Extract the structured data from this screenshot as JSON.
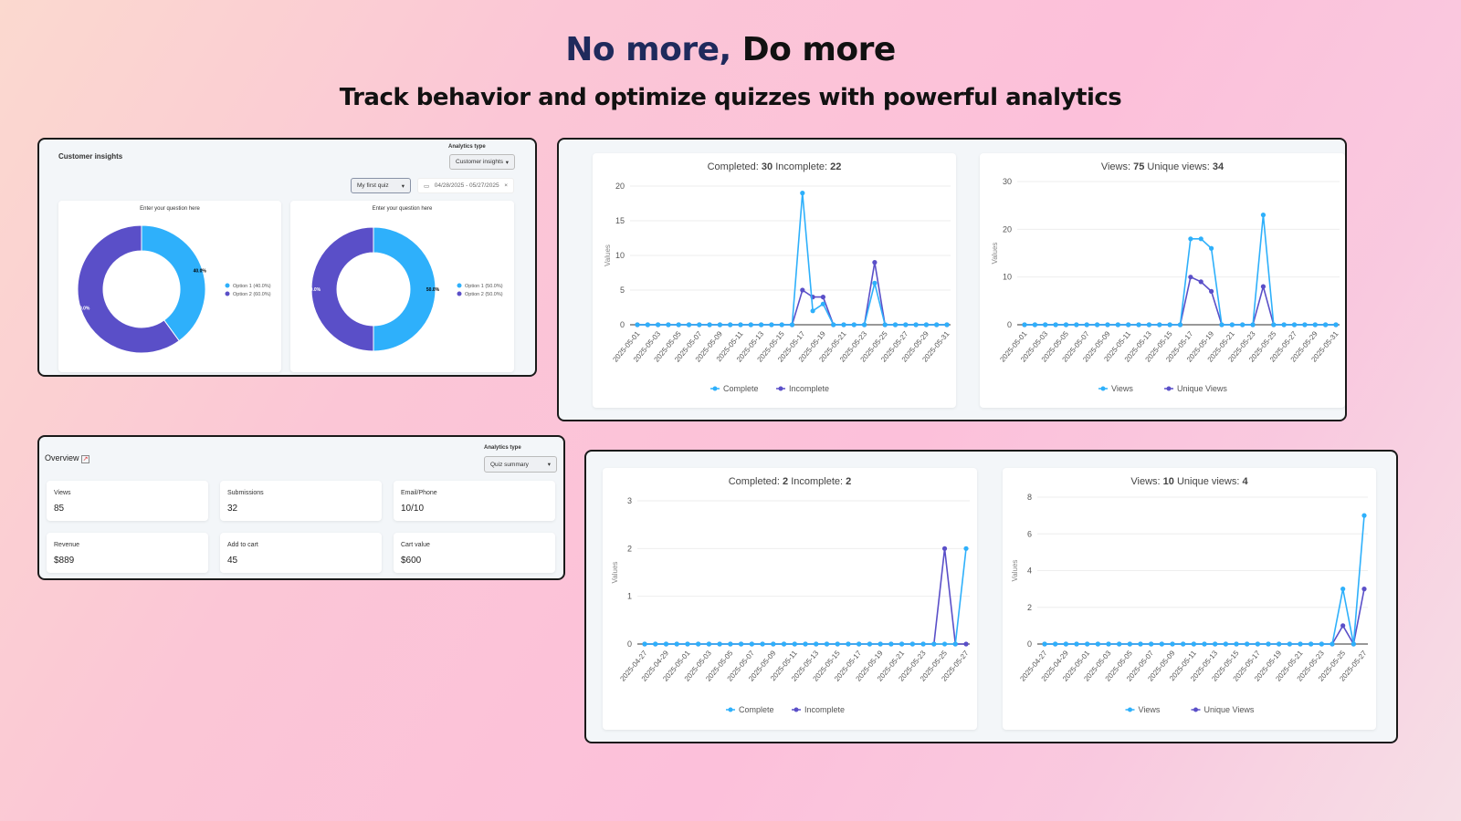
{
  "headline": {
    "part1": "No more,",
    "part2": "Do more"
  },
  "subheadline": "Track behavior and optimize quizzes with powerful analytics",
  "colors": {
    "primary_series": "#2eb0fb",
    "secondary_series": "#5a4fc8",
    "heading_navy": "#1f2a5c"
  },
  "customer_insights": {
    "title": "Customer insights",
    "analytics_type_label": "Analytics type",
    "analytics_type_value": "Customer insights",
    "quiz_select_value": "My first quiz",
    "date_range": "04/28/2025 - 05/27/2025",
    "calendar_icon": "calendar-icon",
    "clear_icon": "close-icon"
  },
  "overview": {
    "title": "Overview",
    "icon": "chart-icon",
    "analytics_type_label": "Analytics type",
    "analytics_type_value": "Quiz summary",
    "stats": [
      {
        "label": "Views",
        "value": "85"
      },
      {
        "label": "Submissions",
        "value": "32"
      },
      {
        "label": "Email/Phone",
        "value": "10/10"
      },
      {
        "label": "Revenue",
        "value": "$889"
      },
      {
        "label": "Add to cart",
        "value": "45"
      },
      {
        "label": "Cart value",
        "value": "$600"
      }
    ]
  },
  "chart_data": [
    {
      "type": "pie",
      "donut": true,
      "title": "Enter your question here",
      "slices": [
        {
          "name": "Option 1 (40.0%)",
          "value": 40.0,
          "label": "40.0%"
        },
        {
          "name": "Option 2 (60.0%)",
          "value": 60.0,
          "label": "60.0%"
        }
      ],
      "legend": "right"
    },
    {
      "type": "pie",
      "donut": true,
      "title": "Enter your question here",
      "slices": [
        {
          "name": "Option 1 (50.0%)",
          "value": 50.0,
          "label": "50.0%"
        },
        {
          "name": "Option 2 (50.0%)",
          "value": 50.0,
          "label": "50.0%"
        }
      ],
      "legend": "right"
    },
    {
      "type": "line",
      "title": [
        [
          "Completed:",
          "30"
        ],
        [
          "Incomplete:",
          "22"
        ]
      ],
      "ylabel": "Values",
      "ylim": [
        0,
        20
      ],
      "yticks": [
        0,
        5,
        10,
        15,
        20
      ],
      "grid": true,
      "legend": "bottom",
      "x": [
        "2025-05-01",
        "2025-05-02",
        "2025-05-03",
        "2025-05-04",
        "2025-05-05",
        "2025-05-06",
        "2025-05-07",
        "2025-05-08",
        "2025-05-09",
        "2025-05-10",
        "2025-05-11",
        "2025-05-12",
        "2025-05-13",
        "2025-05-14",
        "2025-05-15",
        "2025-05-16",
        "2025-05-17",
        "2025-05-18",
        "2025-05-19",
        "2025-05-20",
        "2025-05-21",
        "2025-05-22",
        "2025-05-23",
        "2025-05-24",
        "2025-05-25",
        "2025-05-26",
        "2025-05-27",
        "2025-05-28",
        "2025-05-29",
        "2025-05-30",
        "2025-05-31"
      ],
      "series": [
        {
          "name": "Complete",
          "values": [
            0,
            0,
            0,
            0,
            0,
            0,
            0,
            0,
            0,
            0,
            0,
            0,
            0,
            0,
            0,
            0,
            19,
            2,
            3,
            0,
            0,
            0,
            0,
            6,
            0,
            0,
            0,
            0,
            0,
            0,
            0
          ]
        },
        {
          "name": "Incomplete",
          "values": [
            0,
            0,
            0,
            0,
            0,
            0,
            0,
            0,
            0,
            0,
            0,
            0,
            0,
            0,
            0,
            0,
            5,
            4,
            4,
            0,
            0,
            0,
            0,
            9,
            0,
            0,
            0,
            0,
            0,
            0,
            0
          ]
        }
      ]
    },
    {
      "type": "line",
      "title": [
        [
          "Views:",
          "75"
        ],
        [
          "Unique views:",
          "34"
        ]
      ],
      "ylabel": "Values",
      "ylim": [
        0,
        30
      ],
      "yticks": [
        0,
        10,
        20,
        30
      ],
      "grid": true,
      "legend": "bottom",
      "x": [
        "2025-05-01",
        "2025-05-02",
        "2025-05-03",
        "2025-05-04",
        "2025-05-05",
        "2025-05-06",
        "2025-05-07",
        "2025-05-08",
        "2025-05-09",
        "2025-05-10",
        "2025-05-11",
        "2025-05-12",
        "2025-05-13",
        "2025-05-14",
        "2025-05-15",
        "2025-05-16",
        "2025-05-17",
        "2025-05-18",
        "2025-05-19",
        "2025-05-20",
        "2025-05-21",
        "2025-05-22",
        "2025-05-23",
        "2025-05-24",
        "2025-05-25",
        "2025-05-26",
        "2025-05-27",
        "2025-05-28",
        "2025-05-29",
        "2025-05-30",
        "2025-05-31"
      ],
      "series": [
        {
          "name": "Views",
          "values": [
            0,
            0,
            0,
            0,
            0,
            0,
            0,
            0,
            0,
            0,
            0,
            0,
            0,
            0,
            0,
            0,
            18,
            18,
            16,
            0,
            0,
            0,
            0,
            23,
            0,
            0,
            0,
            0,
            0,
            0,
            0
          ]
        },
        {
          "name": "Unique Views",
          "values": [
            0,
            0,
            0,
            0,
            0,
            0,
            0,
            0,
            0,
            0,
            0,
            0,
            0,
            0,
            0,
            0,
            10,
            9,
            7,
            0,
            0,
            0,
            0,
            8,
            0,
            0,
            0,
            0,
            0,
            0,
            0
          ]
        }
      ]
    },
    {
      "type": "line",
      "title": [
        [
          "Completed:",
          "2"
        ],
        [
          "Incomplete:",
          "2"
        ]
      ],
      "ylabel": "Values",
      "ylim": [
        0,
        3
      ],
      "yticks": [
        0,
        1,
        2,
        3
      ],
      "grid": true,
      "legend": "bottom",
      "x": [
        "2025-04-27",
        "2025-04-28",
        "2025-04-29",
        "2025-04-30",
        "2025-05-01",
        "2025-05-02",
        "2025-05-03",
        "2025-05-04",
        "2025-05-05",
        "2025-05-06",
        "2025-05-07",
        "2025-05-08",
        "2025-05-09",
        "2025-05-10",
        "2025-05-11",
        "2025-05-12",
        "2025-05-13",
        "2025-05-14",
        "2025-05-15",
        "2025-05-16",
        "2025-05-17",
        "2025-05-18",
        "2025-05-19",
        "2025-05-20",
        "2025-05-21",
        "2025-05-22",
        "2025-05-23",
        "2025-05-24",
        "2025-05-25",
        "2025-05-26",
        "2025-05-27"
      ],
      "series": [
        {
          "name": "Complete",
          "values": [
            0,
            0,
            0,
            0,
            0,
            0,
            0,
            0,
            0,
            0,
            0,
            0,
            0,
            0,
            0,
            0,
            0,
            0,
            0,
            0,
            0,
            0,
            0,
            0,
            0,
            0,
            0,
            0,
            0,
            0,
            2
          ]
        },
        {
          "name": "Incomplete",
          "values": [
            0,
            0,
            0,
            0,
            0,
            0,
            0,
            0,
            0,
            0,
            0,
            0,
            0,
            0,
            0,
            0,
            0,
            0,
            0,
            0,
            0,
            0,
            0,
            0,
            0,
            0,
            0,
            0,
            2,
            0,
            0
          ]
        }
      ]
    },
    {
      "type": "line",
      "title": [
        [
          "Views:",
          "10"
        ],
        [
          "Unique views:",
          "4"
        ]
      ],
      "ylabel": "Values",
      "ylim": [
        0,
        8
      ],
      "yticks": [
        0,
        2,
        4,
        6,
        8
      ],
      "grid": true,
      "legend": "bottom",
      "x": [
        "2025-04-27",
        "2025-04-28",
        "2025-04-29",
        "2025-04-30",
        "2025-05-01",
        "2025-05-02",
        "2025-05-03",
        "2025-05-04",
        "2025-05-05",
        "2025-05-06",
        "2025-05-07",
        "2025-05-08",
        "2025-05-09",
        "2025-05-10",
        "2025-05-11",
        "2025-05-12",
        "2025-05-13",
        "2025-05-14",
        "2025-05-15",
        "2025-05-16",
        "2025-05-17",
        "2025-05-18",
        "2025-05-19",
        "2025-05-20",
        "2025-05-21",
        "2025-05-22",
        "2025-05-23",
        "2025-05-24",
        "2025-05-25",
        "2025-05-26",
        "2025-05-27"
      ],
      "series": [
        {
          "name": "Views",
          "values": [
            0,
            0,
            0,
            0,
            0,
            0,
            0,
            0,
            0,
            0,
            0,
            0,
            0,
            0,
            0,
            0,
            0,
            0,
            0,
            0,
            0,
            0,
            0,
            0,
            0,
            0,
            0,
            0,
            3,
            0,
            7
          ]
        },
        {
          "name": "Unique Views",
          "values": [
            0,
            0,
            0,
            0,
            0,
            0,
            0,
            0,
            0,
            0,
            0,
            0,
            0,
            0,
            0,
            0,
            0,
            0,
            0,
            0,
            0,
            0,
            0,
            0,
            0,
            0,
            0,
            0,
            1,
            0,
            3
          ]
        }
      ]
    }
  ]
}
